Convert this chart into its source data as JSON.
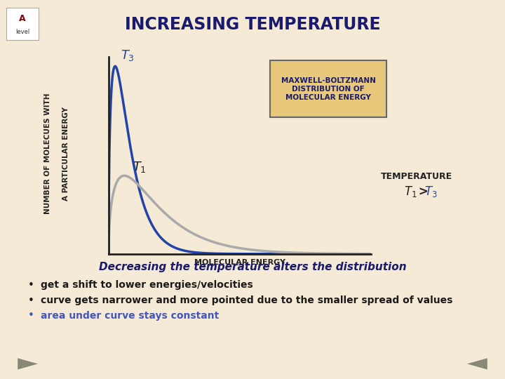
{
  "title": "INCREASING TEMPERATURE",
  "title_color": "#1a1a6e",
  "bg_color": "#f5ead5",
  "xlabel": "MOLECULAR ENERGY",
  "ylabel_line1": "NUMBER OF MOLECUES WITH",
  "ylabel_line2": "A PARTICULAR ENERGY",
  "curve_T3_color": "#2244aa",
  "curve_T1_color": "#aaaaaa",
  "box_text": "MAXWELL-BOLTZMANN\nDISTRIBUTION OF\nMOLECULAR ENERGY",
  "box_facecolor": "#e8c87a",
  "box_edgecolor": "#666666",
  "temp_label": "TEMPERATURE",
  "temp_color": "#222222",
  "relation_T1_color": "#222222",
  "relation_T3_color": "#2244aa",
  "footer_title": "Decreasing the temperature alters the distribution",
  "footer_title_color": "#1a1a6e",
  "bullet1": "get a shift to lower energies/velocities",
  "bullet2": "curve gets narrower and more pointed due to the smaller spread of values",
  "bullet3": "area under curve stays constant",
  "bullet3_color": "#4455bb",
  "bullet_color": "#1a1a1a",
  "arrow_color": "#888877",
  "logo_bg": "#ffffff",
  "T3_kT": 0.5,
  "T1_kT": 1.2
}
